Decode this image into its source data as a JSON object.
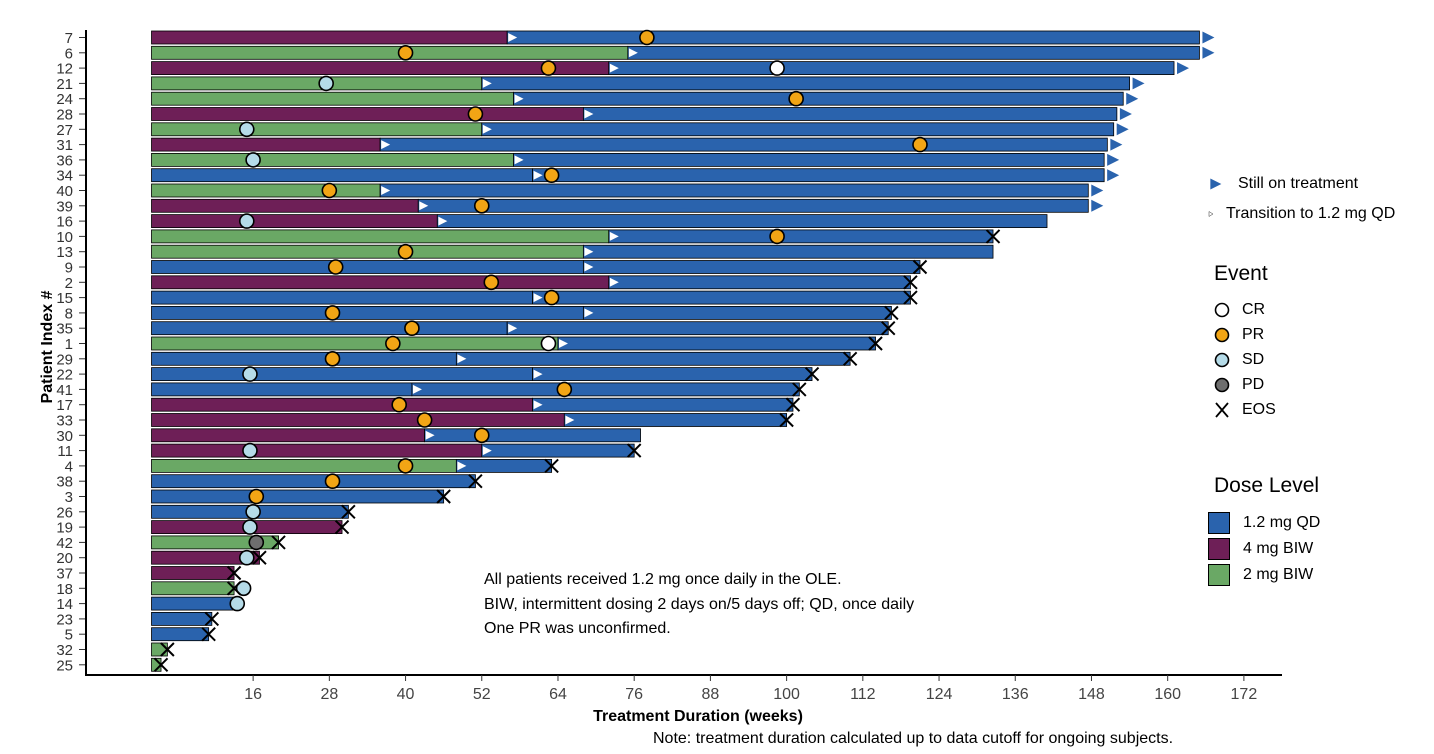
{
  "chart_data": {
    "type": "bar",
    "orientation": "horizontal",
    "xlabel": "Treatment Duration (weeks)",
    "ylabel": "Patient Index #",
    "xlim": [
      -10,
      178
    ],
    "x_ticks": [
      16,
      28,
      40,
      52,
      64,
      76,
      88,
      100,
      112,
      124,
      136,
      148,
      160,
      172
    ],
    "colors": {
      "1.2 mg QD": "#2a63ad",
      "4 mg BIW": "#6e1f57",
      "2 mg BIW": "#6aa865"
    },
    "event_colors": {
      "CR": "#ffffff",
      "PR": "#f2a515",
      "SD": "#b5dbe8",
      "PD": "#6e6e6e"
    },
    "patients": [
      {
        "id": "7",
        "dose": "4 mg BIW",
        "switch": 56,
        "end": 165,
        "ongoing": true,
        "eos": false,
        "events": [
          {
            "type": "PR",
            "x": 78
          }
        ]
      },
      {
        "id": "6",
        "dose": "2 mg BIW",
        "switch": 75,
        "end": 165,
        "ongoing": true,
        "eos": false,
        "events": [
          {
            "type": "PR",
            "x": 40
          }
        ]
      },
      {
        "id": "12",
        "dose": "4 mg BIW",
        "switch": 72,
        "end": 161,
        "ongoing": true,
        "eos": false,
        "events": [
          {
            "type": "PR",
            "x": 62.5
          },
          {
            "type": "CR",
            "x": 98.5
          }
        ]
      },
      {
        "id": "21",
        "dose": "2 mg BIW",
        "switch": 52,
        "end": 154,
        "ongoing": true,
        "eos": false,
        "events": [
          {
            "type": "SD",
            "x": 27.5
          }
        ]
      },
      {
        "id": "24",
        "dose": "2 mg BIW",
        "switch": 57,
        "end": 153,
        "ongoing": true,
        "eos": false,
        "events": [
          {
            "type": "PR",
            "x": 101.5
          }
        ]
      },
      {
        "id": "28",
        "dose": "4 mg BIW",
        "switch": 68,
        "end": 152,
        "ongoing": true,
        "eos": false,
        "events": [
          {
            "type": "PR",
            "x": 51
          }
        ]
      },
      {
        "id": "27",
        "dose": "2 mg BIW",
        "switch": 52,
        "end": 151.5,
        "ongoing": true,
        "eos": false,
        "events": [
          {
            "type": "SD",
            "x": 15
          }
        ]
      },
      {
        "id": "31",
        "dose": "4 mg BIW",
        "switch": 36,
        "end": 150.5,
        "ongoing": true,
        "eos": false,
        "events": [
          {
            "type": "PR",
            "x": 121
          }
        ]
      },
      {
        "id": "36",
        "dose": "2 mg BIW",
        "switch": 57,
        "end": 150,
        "ongoing": true,
        "eos": false,
        "events": [
          {
            "type": "SD",
            "x": 16
          }
        ]
      },
      {
        "id": "34",
        "dose": "1.2 mg QD",
        "switch": 60,
        "end": 150,
        "ongoing": true,
        "eos": false,
        "events": [
          {
            "type": "PR",
            "x": 63
          }
        ]
      },
      {
        "id": "40",
        "dose": "2 mg BIW",
        "switch": 36,
        "end": 147.5,
        "ongoing": true,
        "eos": false,
        "events": [
          {
            "type": "PR",
            "x": 28
          }
        ]
      },
      {
        "id": "39",
        "dose": "4 mg BIW",
        "switch": 42,
        "end": 147.5,
        "ongoing": true,
        "eos": false,
        "events": [
          {
            "type": "PR",
            "x": 52
          }
        ]
      },
      {
        "id": "16",
        "dose": "4 mg BIW",
        "switch": 45,
        "end": 141,
        "ongoing": false,
        "eos": false,
        "events": [
          {
            "type": "SD",
            "x": 15
          }
        ]
      },
      {
        "id": "10",
        "dose": "2 mg BIW",
        "switch": 72,
        "end": 132.5,
        "ongoing": false,
        "eos": true,
        "events": [
          {
            "type": "PR",
            "x": 98.5
          }
        ]
      },
      {
        "id": "13",
        "dose": "2 mg BIW",
        "switch": 68,
        "end": 132.5,
        "ongoing": false,
        "eos": false,
        "events": [
          {
            "type": "PR",
            "x": 40
          }
        ]
      },
      {
        "id": "9",
        "dose": "1.2 mg QD",
        "switch": 68,
        "end": 121,
        "ongoing": false,
        "eos": true,
        "events": [
          {
            "type": "PR",
            "x": 29
          }
        ]
      },
      {
        "id": "2",
        "dose": "4 mg BIW",
        "switch": 72,
        "end": 119.5,
        "ongoing": false,
        "eos": true,
        "events": [
          {
            "type": "PR",
            "x": 53.5
          }
        ]
      },
      {
        "id": "15",
        "dose": "1.2 mg QD",
        "switch": 60,
        "end": 119.5,
        "ongoing": false,
        "eos": true,
        "events": [
          {
            "type": "PR",
            "x": 63
          }
        ]
      },
      {
        "id": "8",
        "dose": "1.2 mg QD",
        "switch": 68,
        "end": 116.5,
        "ongoing": false,
        "eos": true,
        "events": [
          {
            "type": "PR",
            "x": 28.5
          }
        ]
      },
      {
        "id": "35",
        "dose": "1.2 mg QD",
        "switch": 56,
        "end": 116,
        "ongoing": false,
        "eos": true,
        "events": [
          {
            "type": "PR",
            "x": 41
          }
        ]
      },
      {
        "id": "1",
        "dose": "2 mg BIW",
        "switch": 64,
        "end": 114,
        "ongoing": false,
        "eos": true,
        "events": [
          {
            "type": "PR",
            "x": 38
          },
          {
            "type": "CR",
            "x": 62.5
          }
        ]
      },
      {
        "id": "29",
        "dose": "1.2 mg QD",
        "switch": 48,
        "end": 110,
        "ongoing": false,
        "eos": true,
        "events": [
          {
            "type": "PR",
            "x": 28.5
          }
        ]
      },
      {
        "id": "22",
        "dose": "1.2 mg QD",
        "switch": 60,
        "end": 104,
        "ongoing": false,
        "eos": true,
        "events": [
          {
            "type": "SD",
            "x": 15.5
          }
        ]
      },
      {
        "id": "41",
        "dose": "1.2 mg QD",
        "switch": 41,
        "end": 102,
        "ongoing": false,
        "eos": true,
        "events": [
          {
            "type": "PR",
            "x": 65
          }
        ]
      },
      {
        "id": "17",
        "dose": "4 mg BIW",
        "switch": 60,
        "end": 101,
        "ongoing": false,
        "eos": true,
        "events": [
          {
            "type": "PR",
            "x": 39
          }
        ]
      },
      {
        "id": "33",
        "dose": "4 mg BIW",
        "switch": 65,
        "end": 100,
        "ongoing": false,
        "eos": true,
        "events": [
          {
            "type": "PR",
            "x": 43
          }
        ]
      },
      {
        "id": "30",
        "dose": "4 mg BIW",
        "switch": 43,
        "end": 77,
        "ongoing": false,
        "eos": false,
        "events": [
          {
            "type": "PR",
            "x": 52
          }
        ]
      },
      {
        "id": "11",
        "dose": "4 mg BIW",
        "switch": 52,
        "end": 76,
        "ongoing": false,
        "eos": true,
        "events": [
          {
            "type": "SD",
            "x": 15.5
          }
        ]
      },
      {
        "id": "4",
        "dose": "2 mg BIW",
        "switch": 48,
        "end": 63,
        "ongoing": false,
        "eos": true,
        "events": [
          {
            "type": "PR",
            "x": 40
          }
        ]
      },
      {
        "id": "38",
        "dose": "1.2 mg QD",
        "switch": null,
        "end": 51,
        "ongoing": false,
        "eos": true,
        "events": [
          {
            "type": "PR",
            "x": 28.5
          }
        ]
      },
      {
        "id": "3",
        "dose": "1.2 mg QD",
        "switch": null,
        "end": 46,
        "ongoing": false,
        "eos": true,
        "events": [
          {
            "type": "PR",
            "x": 16.5
          }
        ]
      },
      {
        "id": "26",
        "dose": "1.2 mg QD",
        "switch": null,
        "end": 31,
        "ongoing": false,
        "eos": true,
        "events": [
          {
            "type": "SD",
            "x": 16
          }
        ]
      },
      {
        "id": "19",
        "dose": "4 mg BIW",
        "switch": null,
        "end": 30,
        "ongoing": false,
        "eos": true,
        "events": [
          {
            "type": "SD",
            "x": 15.5
          }
        ]
      },
      {
        "id": "42",
        "dose": "2 mg BIW",
        "switch": null,
        "end": 20,
        "ongoing": false,
        "eos": true,
        "events": [
          {
            "type": "PD",
            "x": 16.5
          }
        ]
      },
      {
        "id": "20",
        "dose": "4 mg BIW",
        "switch": null,
        "end": 17,
        "ongoing": false,
        "eos": true,
        "events": [
          {
            "type": "SD",
            "x": 15
          }
        ]
      },
      {
        "id": "37",
        "dose": "4 mg BIW",
        "switch": null,
        "end": 13,
        "ongoing": false,
        "eos": true,
        "events": []
      },
      {
        "id": "18",
        "dose": "2 mg BIW",
        "switch": null,
        "end": 13,
        "ongoing": false,
        "eos": true,
        "events": [
          {
            "type": "SD",
            "x": 14.5
          }
        ]
      },
      {
        "id": "14",
        "dose": "1.2 mg QD",
        "switch": null,
        "end": 13,
        "ongoing": false,
        "eos": false,
        "events": [
          {
            "type": "SD",
            "x": 13.5
          }
        ]
      },
      {
        "id": "23",
        "dose": "1.2 mg QD",
        "switch": null,
        "end": 9.5,
        "ongoing": false,
        "eos": true,
        "events": []
      },
      {
        "id": "5",
        "dose": "1.2 mg QD",
        "switch": null,
        "end": 9,
        "ongoing": false,
        "eos": true,
        "events": []
      },
      {
        "id": "32",
        "dose": "2 mg BIW",
        "switch": null,
        "end": 2.5,
        "ongoing": false,
        "eos": true,
        "events": []
      },
      {
        "id": "25",
        "dose": "2 mg BIW",
        "switch": null,
        "end": 1.5,
        "ongoing": false,
        "eos": true,
        "events": []
      }
    ]
  },
  "legend": {
    "still_on_treatment": "Still on treatment",
    "transition": "Transition to 1.2 mg QD",
    "event_title": "Event",
    "events": [
      "CR",
      "PR",
      "SD",
      "PD",
      "EOS"
    ],
    "dose_title": "Dose Level",
    "doses": [
      "1.2 mg QD",
      "4 mg BIW",
      "2 mg BIW"
    ]
  },
  "footnote": {
    "line1": "All patients received 1.2 mg once daily in the OLE.",
    "line2": "BIW, intermittent dosing 2 days on/5 days off; QD, once daily",
    "line3": "One PR was unconfirmed."
  },
  "bottom_note": "Note: treatment duration calculated up to data cutoff for ongoing subjects."
}
